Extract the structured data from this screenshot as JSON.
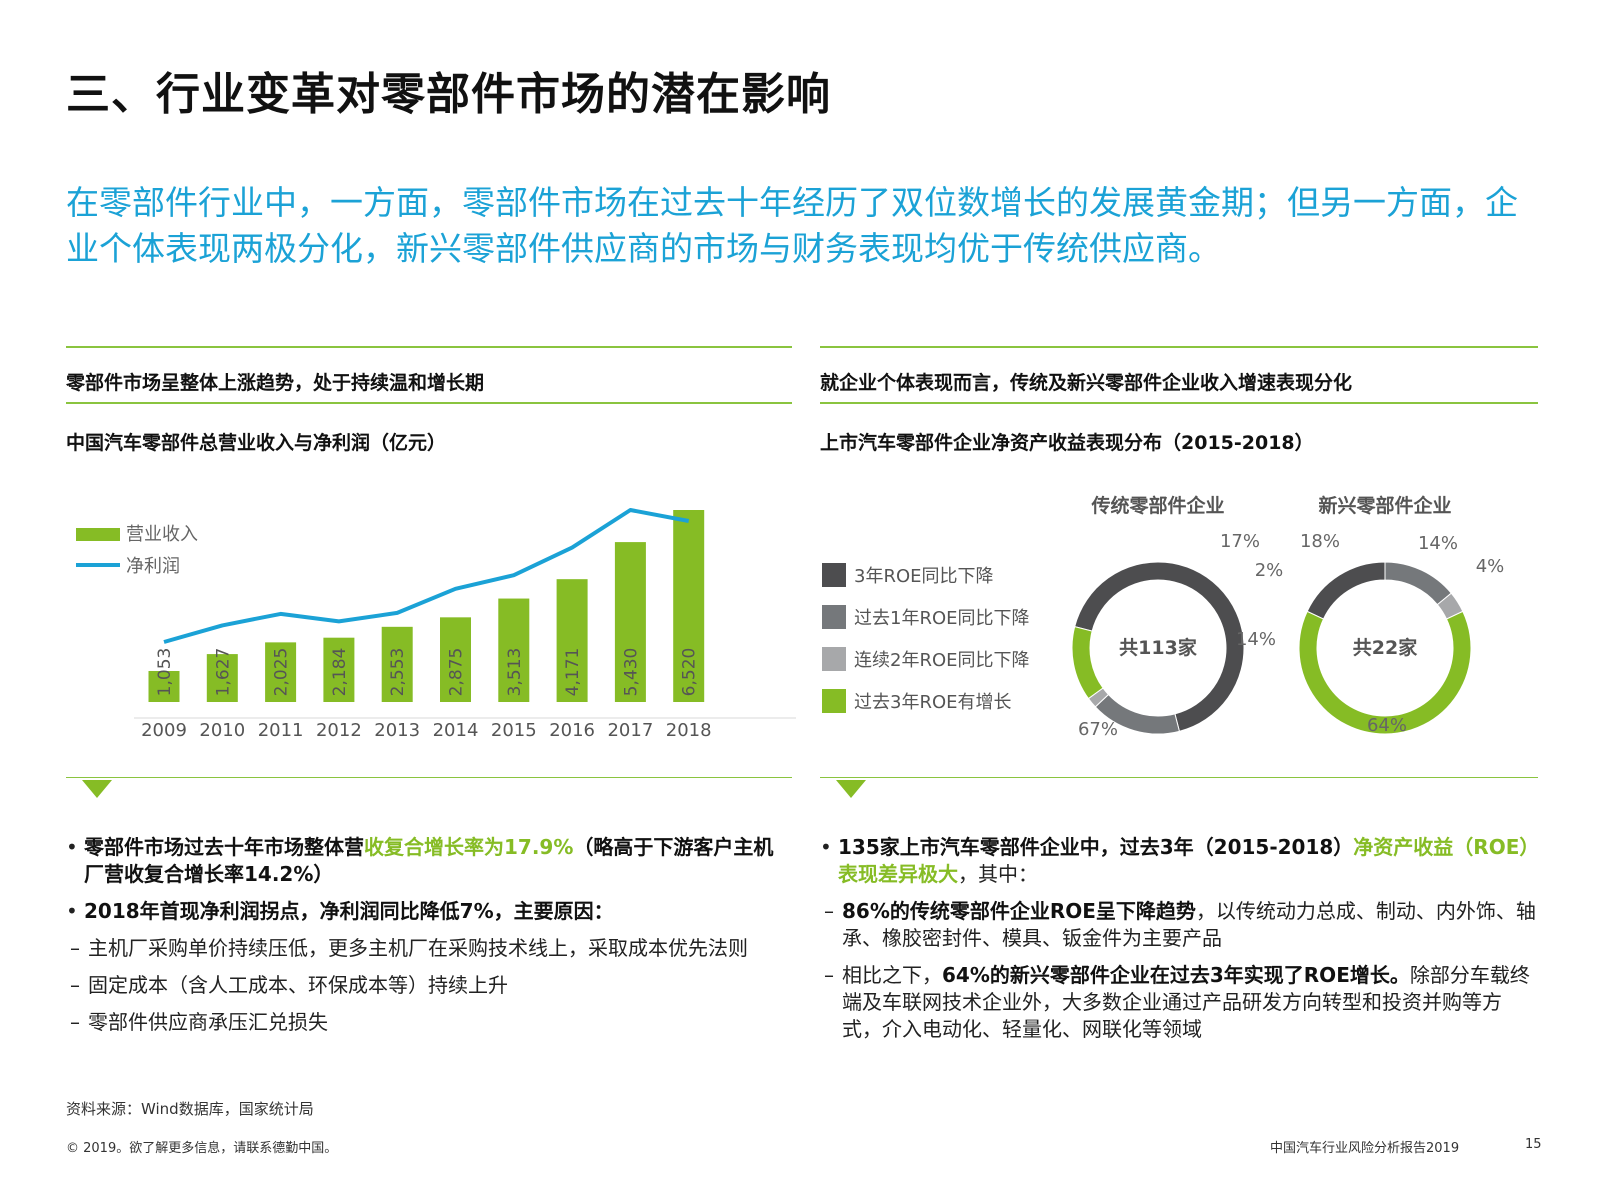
{
  "title": "三、行业变革对零部件市场的潜在影响",
  "subtitle": "在零部件行业中，一方面，零部件市场在过去十年经历了双位数增长的发展黄金期；但另一方面，企业个体表现两极分化，新兴零部件供应商的市场与财务表现均优于传统供应商。",
  "left": {
    "section_header": "零部件市场呈整体上涨趋势，处于持续温和增长期",
    "chart_title": "中国汽车零部件总营业收入与净利润（亿元）",
    "bullets": {
      "b1_pre": "零部件市场过去十年市场整体营",
      "b1_green": "收复合增长率为17.9%",
      "b1_post": "（略高于下游客户主机厂营收复合增长率14.2%）",
      "b2": "2018年首现净利润拐点，净利润同比降低7%，主要原因：",
      "s1": "主机厂采购单价持续压低，更多主机厂在采购技术线上，采取成本优先法则",
      "s2": "固定成本（含人工成本、环保成本等）持续上升",
      "s3": "零部件供应商承压汇兑损失"
    }
  },
  "right": {
    "section_header": "就企业个体表现而言，传统及新兴零部件企业收入增速表现分化",
    "chart_title": "上市汽车零部件企业净资产收益表现分布（2015-2018）",
    "bullets": {
      "b1_pre": "135家上市汽车零部件企业中，过去3年（2015-2018）",
      "b1_green": "净资产收益（ROE）表现差异极大",
      "b1_post": "，其中：",
      "s1_bold": "86%的传统零部件企业ROE呈下降趋势",
      "s1_rest": "，以传统动力总成、制动、内外饰、轴承、橡胶密封件、模具、钣金件为主要产品",
      "s2_pre": "相比之下，",
      "s2_bold": "64%的新兴零部件企业在过去3年实现了ROE增长。",
      "s2_rest": "除部分车载终端及车联网技术企业外，大多数企业通过产品研发方向转型和投资并购等方式，介入电动化、轻量化、网联化等领域"
    }
  },
  "source": "资料来源：Wind数据库，国家统计局",
  "copyright": "© 2019。欲了解更多信息，请联系德勤中国。",
  "report_name": "中国汽车行业风险分析报告2019",
  "page_number": "15",
  "colors": {
    "green": "#86bc25",
    "blue": "#1ba2d6",
    "dark_gray": "#4d4d4f",
    "mid_gray": "#75787b",
    "light_gray": "#a7a8aa"
  },
  "chart_data": [
    {
      "type": "bar",
      "title": "中国汽车零部件总营业收入与净利润（亿元）",
      "categories": [
        "2009",
        "2010",
        "2011",
        "2012",
        "2013",
        "2014",
        "2015",
        "2016",
        "2017",
        "2018"
      ],
      "series": [
        {
          "name": "营业收入",
          "type": "bar",
          "values": [
            1053,
            1627,
            2025,
            2184,
            2553,
            2875,
            3513,
            4171,
            5430,
            6520
          ],
          "labels": [
            "1,053",
            "1,627",
            "2,025",
            "2,184",
            "2,553",
            "2,875",
            "3,513",
            "4,171",
            "5,430",
            "6,520"
          ]
        },
        {
          "name": "净利润",
          "type": "line",
          "values": [
            62,
            95,
            118,
            103,
            120,
            168,
            195,
            250,
            325,
            303
          ]
        }
      ],
      "legend": "top-left",
      "grid": false
    },
    {
      "type": "pie",
      "legend": [
        {
          "label": "3年ROE同比下降",
          "color": "#4d4d4f"
        },
        {
          "label": "过去1年ROE同比下降",
          "color": "#75787b"
        },
        {
          "label": "连续2年ROE同比下降",
          "color": "#a7a8aa"
        },
        {
          "label": "过去3年ROE有增长",
          "color": "#86bc25"
        }
      ],
      "donuts": [
        {
          "title": "传统零部件企业",
          "center_label": "共113家",
          "values": [
            67,
            17,
            2,
            14
          ],
          "labels": [
            "67%",
            "17%",
            "2%",
            "14%"
          ]
        },
        {
          "title": "新兴零部件企业",
          "center_label": "共22家",
          "values": [
            18,
            14,
            4,
            64
          ],
          "labels": [
            "18%",
            "14%",
            "4%",
            "64%"
          ]
        }
      ]
    }
  ]
}
